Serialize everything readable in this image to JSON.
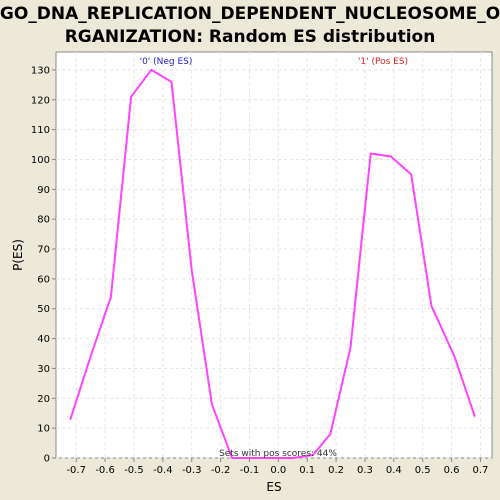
{
  "chart_data": {
    "type": "line",
    "title_lines": [
      "GO_DNA_REPLICATION_DEPENDENT_NUCLEOSOME_O",
      "RGANIZATION: Random ES distribution"
    ],
    "xlabel": "ES",
    "ylabel": "P(ES)",
    "xlim": [
      -0.77,
      0.74
    ],
    "ylim": [
      0,
      136
    ],
    "x_ticks": [
      -0.7,
      -0.6,
      -0.5,
      -0.4,
      -0.3,
      -0.2,
      -0.1,
      0.0,
      0.1,
      0.2,
      0.3,
      0.4,
      0.5,
      0.6,
      0.7
    ],
    "x_tick_labels": [
      "-0.7",
      "-0.6",
      "-0.5",
      "-0.4",
      "-0.3",
      "-0.2",
      "-0.1",
      "0.0",
      "0.1",
      "0.2",
      "0.3",
      "0.4",
      "0.5",
      "0.6",
      "0.7"
    ],
    "y_ticks": [
      0,
      10,
      20,
      30,
      40,
      50,
      60,
      70,
      80,
      90,
      100,
      110,
      120,
      130
    ],
    "y_tick_labels": [
      "0",
      "10",
      "20",
      "30",
      "40",
      "50",
      "60",
      "70",
      "80",
      "90",
      "100",
      "110",
      "120",
      "130"
    ],
    "grid": true,
    "series": [
      {
        "color": "#FF44FF",
        "x": [
          -0.72,
          -0.65,
          -0.58,
          -0.51,
          -0.44,
          -0.37,
          -0.3,
          -0.23,
          -0.16,
          -0.09,
          -0.02,
          0.05,
          0.12,
          0.18,
          0.25,
          0.32,
          0.39,
          0.46,
          0.53,
          0.61,
          0.68
        ],
        "y": [
          13,
          34,
          54,
          121,
          130,
          126,
          63,
          18,
          0,
          0,
          0,
          0,
          1,
          8,
          37,
          102,
          101,
          95,
          51,
          34,
          14
        ]
      }
    ],
    "annotations": {
      "neg": {
        "text": "'0' (Neg ES)",
        "color": "#2222CC"
      },
      "pos": {
        "text": "'1' (Pos ES)",
        "color": "#DD2222"
      },
      "bottom": {
        "text": "Sets with pos scores: 44%",
        "color": "#333333"
      }
    },
    "plot_background": "#FFFFFF",
    "page_background": "#ECE9D8"
  }
}
